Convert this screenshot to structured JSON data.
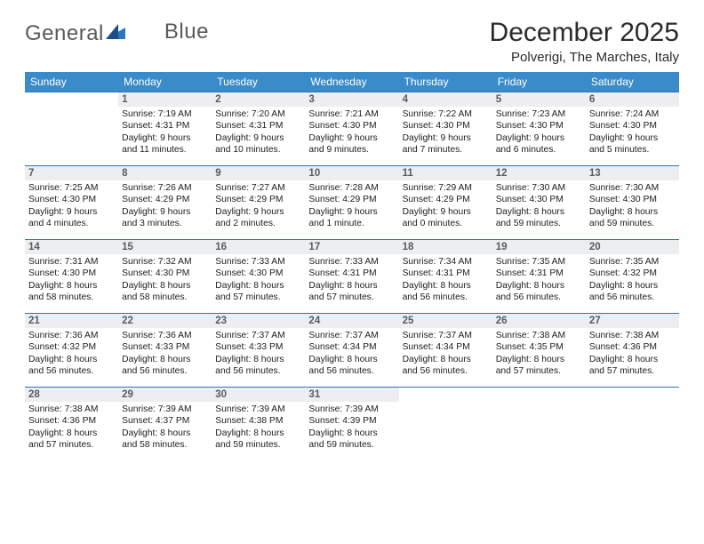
{
  "logo": {
    "text1": "General",
    "text2": "Blue"
  },
  "title": "December 2025",
  "subtitle": "Polverigi, The Marches, Italy",
  "colors": {
    "header_bg": "#3a8bc9",
    "header_text": "#ffffff",
    "rule": "#2b75bd",
    "daynum_bg": "#eceef0",
    "daynum_text": "#585c60",
    "body_text": "#1d1d1d",
    "logo_gray": "#5a5a5a",
    "logo_blue": "#2b75bd"
  },
  "weekdays": [
    "Sunday",
    "Monday",
    "Tuesday",
    "Wednesday",
    "Thursday",
    "Friday",
    "Saturday"
  ],
  "weeks": [
    [
      {
        "empty": true
      },
      {
        "day": "1",
        "sunrise": "Sunrise: 7:19 AM",
        "sunset": "Sunset: 4:31 PM",
        "daylight1": "Daylight: 9 hours",
        "daylight2": "and 11 minutes."
      },
      {
        "day": "2",
        "sunrise": "Sunrise: 7:20 AM",
        "sunset": "Sunset: 4:31 PM",
        "daylight1": "Daylight: 9 hours",
        "daylight2": "and 10 minutes."
      },
      {
        "day": "3",
        "sunrise": "Sunrise: 7:21 AM",
        "sunset": "Sunset: 4:30 PM",
        "daylight1": "Daylight: 9 hours",
        "daylight2": "and 9 minutes."
      },
      {
        "day": "4",
        "sunrise": "Sunrise: 7:22 AM",
        "sunset": "Sunset: 4:30 PM",
        "daylight1": "Daylight: 9 hours",
        "daylight2": "and 7 minutes."
      },
      {
        "day": "5",
        "sunrise": "Sunrise: 7:23 AM",
        "sunset": "Sunset: 4:30 PM",
        "daylight1": "Daylight: 9 hours",
        "daylight2": "and 6 minutes."
      },
      {
        "day": "6",
        "sunrise": "Sunrise: 7:24 AM",
        "sunset": "Sunset: 4:30 PM",
        "daylight1": "Daylight: 9 hours",
        "daylight2": "and 5 minutes."
      }
    ],
    [
      {
        "day": "7",
        "sunrise": "Sunrise: 7:25 AM",
        "sunset": "Sunset: 4:30 PM",
        "daylight1": "Daylight: 9 hours",
        "daylight2": "and 4 minutes."
      },
      {
        "day": "8",
        "sunrise": "Sunrise: 7:26 AM",
        "sunset": "Sunset: 4:29 PM",
        "daylight1": "Daylight: 9 hours",
        "daylight2": "and 3 minutes."
      },
      {
        "day": "9",
        "sunrise": "Sunrise: 7:27 AM",
        "sunset": "Sunset: 4:29 PM",
        "daylight1": "Daylight: 9 hours",
        "daylight2": "and 2 minutes."
      },
      {
        "day": "10",
        "sunrise": "Sunrise: 7:28 AM",
        "sunset": "Sunset: 4:29 PM",
        "daylight1": "Daylight: 9 hours",
        "daylight2": "and 1 minute."
      },
      {
        "day": "11",
        "sunrise": "Sunrise: 7:29 AM",
        "sunset": "Sunset: 4:29 PM",
        "daylight1": "Daylight: 9 hours",
        "daylight2": "and 0 minutes."
      },
      {
        "day": "12",
        "sunrise": "Sunrise: 7:30 AM",
        "sunset": "Sunset: 4:30 PM",
        "daylight1": "Daylight: 8 hours",
        "daylight2": "and 59 minutes."
      },
      {
        "day": "13",
        "sunrise": "Sunrise: 7:30 AM",
        "sunset": "Sunset: 4:30 PM",
        "daylight1": "Daylight: 8 hours",
        "daylight2": "and 59 minutes."
      }
    ],
    [
      {
        "day": "14",
        "sunrise": "Sunrise: 7:31 AM",
        "sunset": "Sunset: 4:30 PM",
        "daylight1": "Daylight: 8 hours",
        "daylight2": "and 58 minutes."
      },
      {
        "day": "15",
        "sunrise": "Sunrise: 7:32 AM",
        "sunset": "Sunset: 4:30 PM",
        "daylight1": "Daylight: 8 hours",
        "daylight2": "and 58 minutes."
      },
      {
        "day": "16",
        "sunrise": "Sunrise: 7:33 AM",
        "sunset": "Sunset: 4:30 PM",
        "daylight1": "Daylight: 8 hours",
        "daylight2": "and 57 minutes."
      },
      {
        "day": "17",
        "sunrise": "Sunrise: 7:33 AM",
        "sunset": "Sunset: 4:31 PM",
        "daylight1": "Daylight: 8 hours",
        "daylight2": "and 57 minutes."
      },
      {
        "day": "18",
        "sunrise": "Sunrise: 7:34 AM",
        "sunset": "Sunset: 4:31 PM",
        "daylight1": "Daylight: 8 hours",
        "daylight2": "and 56 minutes."
      },
      {
        "day": "19",
        "sunrise": "Sunrise: 7:35 AM",
        "sunset": "Sunset: 4:31 PM",
        "daylight1": "Daylight: 8 hours",
        "daylight2": "and 56 minutes."
      },
      {
        "day": "20",
        "sunrise": "Sunrise: 7:35 AM",
        "sunset": "Sunset: 4:32 PM",
        "daylight1": "Daylight: 8 hours",
        "daylight2": "and 56 minutes."
      }
    ],
    [
      {
        "day": "21",
        "sunrise": "Sunrise: 7:36 AM",
        "sunset": "Sunset: 4:32 PM",
        "daylight1": "Daylight: 8 hours",
        "daylight2": "and 56 minutes."
      },
      {
        "day": "22",
        "sunrise": "Sunrise: 7:36 AM",
        "sunset": "Sunset: 4:33 PM",
        "daylight1": "Daylight: 8 hours",
        "daylight2": "and 56 minutes."
      },
      {
        "day": "23",
        "sunrise": "Sunrise: 7:37 AM",
        "sunset": "Sunset: 4:33 PM",
        "daylight1": "Daylight: 8 hours",
        "daylight2": "and 56 minutes."
      },
      {
        "day": "24",
        "sunrise": "Sunrise: 7:37 AM",
        "sunset": "Sunset: 4:34 PM",
        "daylight1": "Daylight: 8 hours",
        "daylight2": "and 56 minutes."
      },
      {
        "day": "25",
        "sunrise": "Sunrise: 7:37 AM",
        "sunset": "Sunset: 4:34 PM",
        "daylight1": "Daylight: 8 hours",
        "daylight2": "and 56 minutes."
      },
      {
        "day": "26",
        "sunrise": "Sunrise: 7:38 AM",
        "sunset": "Sunset: 4:35 PM",
        "daylight1": "Daylight: 8 hours",
        "daylight2": "and 57 minutes."
      },
      {
        "day": "27",
        "sunrise": "Sunrise: 7:38 AM",
        "sunset": "Sunset: 4:36 PM",
        "daylight1": "Daylight: 8 hours",
        "daylight2": "and 57 minutes."
      }
    ],
    [
      {
        "day": "28",
        "sunrise": "Sunrise: 7:38 AM",
        "sunset": "Sunset: 4:36 PM",
        "daylight1": "Daylight: 8 hours",
        "daylight2": "and 57 minutes."
      },
      {
        "day": "29",
        "sunrise": "Sunrise: 7:39 AM",
        "sunset": "Sunset: 4:37 PM",
        "daylight1": "Daylight: 8 hours",
        "daylight2": "and 58 minutes."
      },
      {
        "day": "30",
        "sunrise": "Sunrise: 7:39 AM",
        "sunset": "Sunset: 4:38 PM",
        "daylight1": "Daylight: 8 hours",
        "daylight2": "and 59 minutes."
      },
      {
        "day": "31",
        "sunrise": "Sunrise: 7:39 AM",
        "sunset": "Sunset: 4:39 PM",
        "daylight1": "Daylight: 8 hours",
        "daylight2": "and 59 minutes."
      },
      {
        "empty": true
      },
      {
        "empty": true
      },
      {
        "empty": true
      }
    ]
  ]
}
